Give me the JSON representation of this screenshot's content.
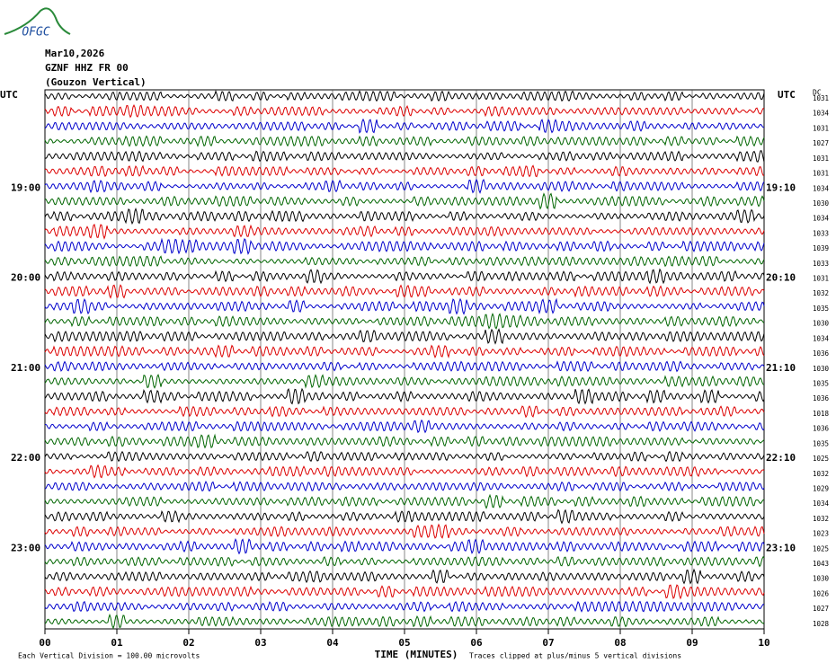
{
  "header": {
    "logo": "OFGC",
    "date": "Mar10,2026",
    "station": "GZNF HHZ FR 00",
    "location": "(Gouzon Vertical)",
    "left_axis_label": "UTC",
    "right_axis_label": "UTC",
    "dc_label": "DC"
  },
  "left_hour_labels": [
    {
      "row": 6,
      "label": "19:00"
    },
    {
      "row": 12,
      "label": "20:00"
    },
    {
      "row": 18,
      "label": "21:00"
    },
    {
      "row": 24,
      "label": "22:00"
    },
    {
      "row": 30,
      "label": "23:00"
    }
  ],
  "right_hour_labels": [
    {
      "row": 6,
      "label": "19:10"
    },
    {
      "row": 12,
      "label": "20:10"
    },
    {
      "row": 18,
      "label": "21:10"
    },
    {
      "row": 24,
      "label": "22:10"
    },
    {
      "row": 30,
      "label": "23:10"
    }
  ],
  "trace_colors": [
    "#000000",
    "#dd0000",
    "#0000cc",
    "#006600"
  ],
  "dc_offsets": [
    "1031",
    "1034",
    "1031",
    "1027",
    "1031",
    "1031",
    "1034",
    "1030",
    "1034",
    "1033",
    "1039",
    "1033",
    "1031",
    "1032",
    "1035",
    "1030",
    "1034",
    "1036",
    "1030",
    "1035",
    "1036",
    "1018",
    "1036",
    "1035",
    "1025",
    "1032",
    "1029",
    "1034",
    "1032",
    "1023",
    "1025",
    "1043",
    "1030",
    "1026",
    "1027",
    "1028"
  ],
  "x_ticks": [
    "00",
    "01",
    "02",
    "03",
    "04",
    "05",
    "06",
    "07",
    "08",
    "09",
    "10"
  ],
  "footer": {
    "scale_note": "Each Vertical Division =  100.00 microvolts",
    "x_axis_title": "TIME (MINUTES)",
    "clip_note": "Traces clipped at plus/minus 5 vertical divisions"
  }
}
